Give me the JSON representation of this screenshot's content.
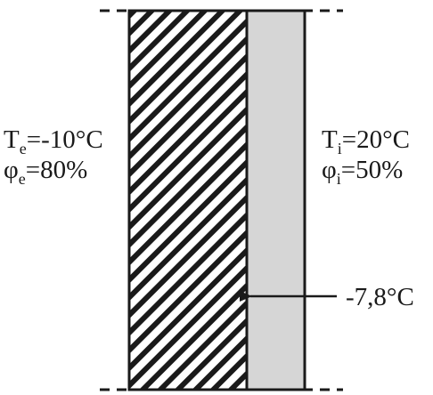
{
  "exterior": {
    "temperature": {
      "symbol": "T",
      "subscript": "e",
      "value": "=-10°C"
    },
    "humidity": {
      "symbol": "φ",
      "subscript": "e",
      "value": "=80%"
    }
  },
  "interior": {
    "temperature": {
      "symbol": "T",
      "subscript": "i",
      "value": "=20°C"
    },
    "humidity": {
      "symbol": "φ",
      "subscript": "i",
      "value": "=50%"
    }
  },
  "interface_temperature": "-7,8°C",
  "colors": {
    "hatch": "#1a1a1a",
    "insulation_fill": "#d6d6d6",
    "stroke": "#1a1a1a"
  }
}
